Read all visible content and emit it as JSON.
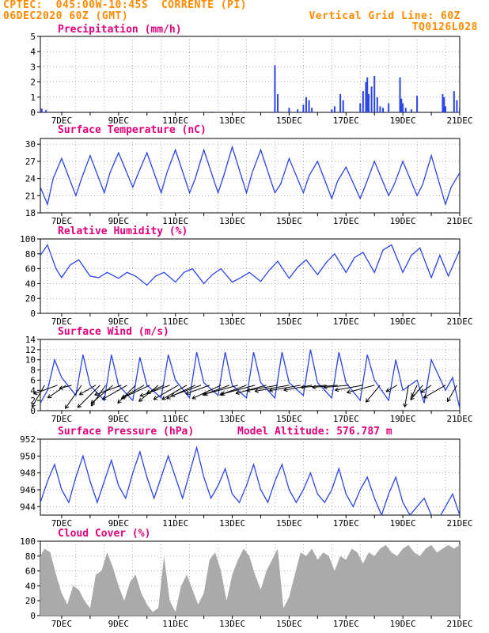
{
  "header": {
    "line1_left": "CPTEC:  045:00W-10:45S  CORRENTE (PI)",
    "line2_left": "06DEC2020 60Z (GMT)",
    "line1_right": "Vertical Grid Line: 60Z",
    "line2_right": "TQ0126L028"
  },
  "colors": {
    "header": "#ff8a00",
    "panel_title": "#e0007a",
    "line": "#2b44e6",
    "cloud_fill": "#aaaaaa",
    "wind_arrow": "#000000"
  },
  "chart_data": [
    {
      "id": "precip",
      "type": "bar",
      "title": "Precipitation (mm/h)",
      "ylim": [
        0,
        5
      ],
      "yticks": [
        "0",
        "1",
        "2",
        "3",
        "4",
        "5"
      ],
      "xticks": [
        "7DEC",
        "9DEC",
        "11DEC",
        "13DEC",
        "15DEC",
        "17DEC",
        "19DEC",
        "21DEC"
      ],
      "xlim_days": [
        6.25,
        21.0
      ],
      "x": [
        6.3,
        6.45,
        7.0,
        8.1,
        9.4,
        10.7,
        12.3,
        13.4,
        14.5,
        14.6,
        15.0,
        15.3,
        15.5,
        15.6,
        15.7,
        15.8,
        16.5,
        16.6,
        16.8,
        16.9,
        17.5,
        17.6,
        17.7,
        17.75,
        17.8,
        17.9,
        18.0,
        18.1,
        18.2,
        18.3,
        18.5,
        18.9,
        18.95,
        19.0,
        19.1,
        19.3,
        19.5,
        20.4,
        20.45,
        20.5,
        20.8,
        20.9,
        21.0
      ],
      "values": [
        0.25,
        0.15,
        0.05,
        0.05,
        0.05,
        0.05,
        0.05,
        0.05,
        3.1,
        1.2,
        0.3,
        0.2,
        0.5,
        1.0,
        0.8,
        0.3,
        0.2,
        0.4,
        1.2,
        0.8,
        0.6,
        1.4,
        2.0,
        2.3,
        1.2,
        1.7,
        2.4,
        1.0,
        0.4,
        0.3,
        0.6,
        2.3,
        0.9,
        0.6,
        0.3,
        0.2,
        1.1,
        1.2,
        1.0,
        0.4,
        1.4,
        0.8,
        0.3
      ]
    },
    {
      "id": "temp",
      "type": "line",
      "title": "Surface Temperature (nC)",
      "ylim": [
        18,
        31
      ],
      "yticks": [
        "18",
        "21",
        "24",
        "27",
        "30"
      ],
      "xticks": [
        "7DEC",
        "9DEC",
        "11DEC",
        "13DEC",
        "15DEC",
        "17DEC",
        "19DEC",
        "21DEC"
      ],
      "xlim_days": [
        6.25,
        21.0
      ],
      "x": [
        6.25,
        6.5,
        6.7,
        7.0,
        7.5,
        7.7,
        8.0,
        8.5,
        8.7,
        9.0,
        9.5,
        9.7,
        10.0,
        10.5,
        10.7,
        11.0,
        11.5,
        11.7,
        12.0,
        12.5,
        12.7,
        13.0,
        13.5,
        13.7,
        14.0,
        14.5,
        14.7,
        15.0,
        15.5,
        15.7,
        16.0,
        16.5,
        16.7,
        17.0,
        17.5,
        17.7,
        18.0,
        18.5,
        18.7,
        19.0,
        19.5,
        19.7,
        20.0,
        20.5,
        20.7,
        21.0
      ],
      "y": [
        22.5,
        19.5,
        24,
        27.5,
        21,
        24,
        28,
        21.5,
        25,
        28.5,
        22.5,
        25,
        28.5,
        21.5,
        25,
        29,
        21.5,
        24,
        29,
        21.5,
        24.5,
        29.5,
        21.5,
        25,
        29,
        21.5,
        23,
        27.5,
        21.5,
        24.5,
        27,
        20.5,
        23.5,
        26,
        20.5,
        23,
        27,
        21,
        23,
        27,
        21,
        23,
        28,
        19.5,
        22.5,
        25
      ]
    },
    {
      "id": "rh",
      "type": "line",
      "title": "Relative Humidity (%)",
      "ylim": [
        0,
        100
      ],
      "yticks": [
        "0",
        "20",
        "40",
        "60",
        "80",
        "100"
      ],
      "xticks": [
        "7DEC",
        "9DEC",
        "11DEC",
        "13DEC",
        "15DEC",
        "17DEC",
        "19DEC",
        "21DEC"
      ],
      "xlim_days": [
        6.25,
        21.0
      ],
      "x": [
        6.25,
        6.5,
        6.8,
        7.0,
        7.3,
        7.6,
        8.0,
        8.3,
        8.6,
        9.0,
        9.3,
        9.6,
        10.0,
        10.3,
        10.6,
        11.0,
        11.3,
        11.6,
        12.0,
        12.3,
        12.6,
        13.0,
        13.3,
        13.6,
        14.0,
        14.3,
        14.6,
        15.0,
        15.3,
        15.6,
        16.0,
        16.3,
        16.6,
        17.0,
        17.3,
        17.6,
        18.0,
        18.3,
        18.6,
        19.0,
        19.3,
        19.6,
        20.0,
        20.3,
        20.6,
        21.0
      ],
      "y": [
        78,
        92,
        60,
        48,
        65,
        72,
        50,
        48,
        55,
        47,
        55,
        50,
        38,
        50,
        55,
        42,
        55,
        60,
        40,
        52,
        60,
        42,
        48,
        55,
        43,
        58,
        70,
        47,
        62,
        72,
        52,
        68,
        80,
        55,
        75,
        82,
        55,
        85,
        92,
        55,
        78,
        88,
        48,
        78,
        50,
        85
      ]
    },
    {
      "id": "wind",
      "type": "line",
      "title": "Surface Wind (m/s)",
      "ylim": [
        0,
        14
      ],
      "yticks": [
        "0",
        "2",
        "4",
        "6",
        "8",
        "10",
        "12",
        "14"
      ],
      "xticks": [
        "7DEC",
        "9DEC",
        "11DEC",
        "13DEC",
        "15DEC",
        "17DEC",
        "19DEC",
        "21DEC"
      ],
      "xlim_days": [
        6.25,
        21.0
      ],
      "x": [
        6.25,
        6.5,
        6.75,
        7.0,
        7.5,
        7.75,
        8.0,
        8.5,
        8.75,
        9.0,
        9.5,
        9.75,
        10.0,
        10.5,
        10.75,
        11.0,
        11.5,
        11.75,
        12.0,
        12.5,
        12.75,
        13.0,
        13.5,
        13.75,
        14.0,
        14.5,
        14.75,
        15.0,
        15.5,
        15.75,
        16.0,
        16.5,
        16.75,
        17.0,
        17.5,
        17.75,
        18.0,
        18.5,
        18.75,
        19.0,
        19.5,
        19.75,
        20.0,
        20.5,
        20.75,
        21.0
      ],
      "y": [
        1.5,
        4,
        10,
        6.5,
        3,
        11,
        5,
        2,
        11,
        5,
        2,
        10.5,
        5,
        2.5,
        11,
        6,
        2.5,
        11.5,
        5.5,
        3,
        11.5,
        5,
        2.5,
        11.5,
        5.5,
        2.5,
        11.5,
        5.5,
        3,
        12,
        5.5,
        2.5,
        11.5,
        5.5,
        2,
        11,
        6,
        2,
        10,
        4,
        6,
        1.5,
        10,
        4,
        6.5,
        0.5
      ]
    },
    {
      "id": "pressure",
      "type": "line",
      "title": "Surface Pressure (hPa)",
      "annotation": "Model Altitude: 576.787 m",
      "ylim": [
        943,
        952
      ],
      "yticks": [
        "944",
        "946",
        "948",
        "950",
        "952"
      ],
      "xticks": [
        "7DEC",
        "9DEC",
        "11DEC",
        "13DEC",
        "15DEC",
        "17DEC",
        "19DEC",
        "21DEC"
      ],
      "xlim_days": [
        6.25,
        21.0
      ],
      "x": [
        6.25,
        6.5,
        6.75,
        7.0,
        7.25,
        7.5,
        7.75,
        8.0,
        8.25,
        8.5,
        8.75,
        9.0,
        9.25,
        9.5,
        9.75,
        10.0,
        10.25,
        10.5,
        10.75,
        11.0,
        11.25,
        11.5,
        11.75,
        12.0,
        12.25,
        12.5,
        12.75,
        13.0,
        13.25,
        13.5,
        13.75,
        14.0,
        14.25,
        14.5,
        14.75,
        15.0,
        15.25,
        15.5,
        15.75,
        16.0,
        16.25,
        16.5,
        16.75,
        17.0,
        17.25,
        17.5,
        17.75,
        18.0,
        18.25,
        18.5,
        18.75,
        19.0,
        19.25,
        19.5,
        19.75,
        20.0,
        20.25,
        20.5,
        20.75,
        21.0
      ],
      "y": [
        944.5,
        947,
        949,
        946,
        944.5,
        947.5,
        950,
        947,
        944.5,
        947,
        949.5,
        946.5,
        945,
        948,
        950.5,
        947.5,
        945,
        947.5,
        950,
        947.5,
        945,
        948,
        951,
        947.5,
        945,
        946.5,
        948.5,
        945.5,
        944.5,
        946.5,
        949,
        946,
        944.5,
        947,
        949,
        946,
        944.5,
        946,
        948,
        945.5,
        944.5,
        946,
        948.5,
        945.5,
        944,
        946,
        947.5,
        945,
        943,
        945.5,
        947.5,
        944.5,
        943,
        944,
        945,
        943,
        942.5,
        944,
        945.5,
        943
      ]
    },
    {
      "id": "cloud",
      "type": "area",
      "title": "Cloud Cover (%)",
      "ylim": [
        0,
        100
      ],
      "yticks": [
        "0",
        "20",
        "40",
        "60",
        "80",
        "100"
      ],
      "xticks": [
        "7DEC",
        "9DEC",
        "11DEC",
        "13DEC",
        "15DEC",
        "17DEC",
        "19DEC",
        "21DEC"
      ],
      "xlim_days": [
        6.25,
        21.0
      ],
      "x": [
        6.25,
        6.4,
        6.6,
        6.8,
        7.0,
        7.2,
        7.4,
        7.6,
        7.8,
        8.0,
        8.2,
        8.4,
        8.6,
        8.8,
        9.0,
        9.2,
        9.4,
        9.6,
        9.8,
        10.0,
        10.2,
        10.4,
        10.6,
        10.8,
        11.0,
        11.2,
        11.4,
        11.6,
        11.8,
        12.0,
        12.2,
        12.4,
        12.6,
        12.8,
        13.0,
        13.2,
        13.4,
        13.6,
        13.8,
        14.0,
        14.2,
        14.4,
        14.6,
        14.8,
        15.0,
        15.2,
        15.4,
        15.6,
        15.8,
        16.0,
        16.2,
        16.4,
        16.6,
        16.8,
        17.0,
        17.2,
        17.4,
        17.6,
        17.8,
        18.0,
        18.2,
        18.4,
        18.6,
        18.8,
        19.0,
        19.2,
        19.4,
        19.6,
        19.8,
        20.0,
        20.2,
        20.4,
        20.6,
        20.8,
        21.0
      ],
      "y": [
        80,
        90,
        85,
        55,
        30,
        15,
        40,
        35,
        20,
        10,
        55,
        60,
        85,
        65,
        40,
        20,
        45,
        55,
        30,
        15,
        5,
        10,
        80,
        20,
        5,
        40,
        55,
        35,
        15,
        30,
        75,
        85,
        60,
        20,
        55,
        75,
        90,
        80,
        55,
        35,
        60,
        75,
        90,
        10,
        25,
        55,
        85,
        80,
        90,
        75,
        85,
        80,
        60,
        80,
        75,
        90,
        85,
        70,
        85,
        80,
        90,
        95,
        85,
        80,
        90,
        95,
        85,
        80,
        90,
        95,
        85,
        90,
        95,
        90,
        95
      ]
    }
  ],
  "wind_vectors": {
    "x": [
      6.4,
      6.85,
      7.15,
      7.35,
      7.7,
      8.2,
      8.35,
      8.55,
      8.8,
      9.1,
      9.3,
      9.6,
      9.9,
      10.1,
      10.4,
      10.6,
      10.8,
      11.1,
      11.4,
      11.7,
      11.9,
      12.2,
      12.6,
      12.9,
      13.2,
      13.5,
      13.8,
      14.2,
      14.6,
      15.0,
      15.4,
      15.8,
      16.3,
      16.7,
      17.1,
      17.6,
      18.0,
      18.2,
      18.8,
      19.2,
      19.5,
      19.7,
      20.0,
      20.5,
      20.9
    ],
    "speed": [
      4,
      4,
      3.5,
      2,
      4.5,
      3,
      5,
      4,
      4.5,
      4.5,
      4.5,
      4,
      4,
      5,
      4,
      3,
      5,
      4.5,
      4.5,
      5,
      5,
      4,
      5,
      4.5,
      5.5,
      4.5,
      5.5,
      5,
      5,
      5.5,
      5,
      4.5,
      4,
      4,
      4,
      4.5,
      4.5,
      3.5,
      2,
      3.5,
      2,
      3,
      2,
      4,
      3
    ],
    "dir_deg": [
      240,
      200,
      215,
      195,
      235,
      210,
      225,
      235,
      220,
      200,
      210,
      225,
      210,
      205,
      220,
      205,
      200,
      210,
      210,
      205,
      200,
      200,
      205,
      200,
      195,
      200,
      195,
      195,
      190,
      190,
      190,
      190,
      185,
      185,
      185,
      190,
      195,
      230,
      210,
      260,
      245,
      230,
      215,
      210,
      240
    ]
  }
}
